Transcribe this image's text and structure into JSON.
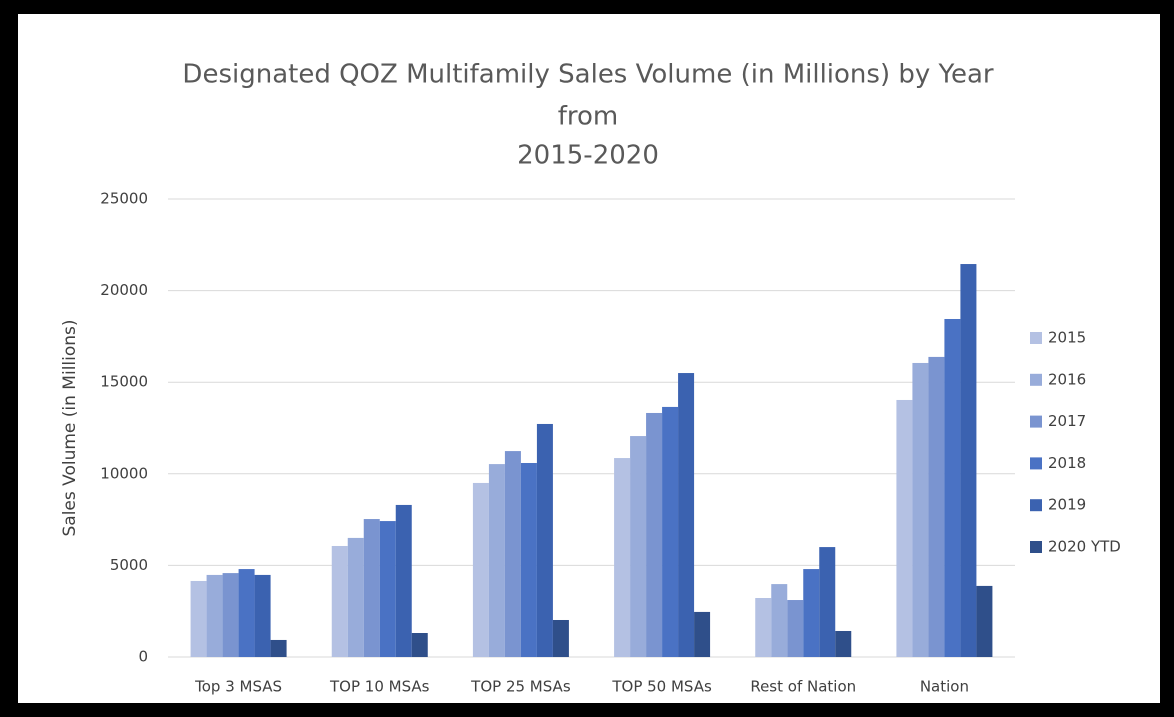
{
  "chart_data": {
    "type": "bar",
    "title": [
      "Designated QOZ Multifamily Sales Volume (in Millions) by Year",
      "from",
      "2015-2020"
    ],
    "y_label": "Sales Volume (in Millions)",
    "categories": [
      "Top 3 MSAS",
      "TOP 10 MSAs",
      "TOP 25 MSAs",
      "TOP 50 MSAs",
      "Rest of Nation",
      "Nation"
    ],
    "series": [
      {
        "name": "2015",
        "color": "#b4c1e3",
        "values": [
          4150,
          6060,
          9500,
          10860,
          3220,
          14030
        ]
      },
      {
        "name": "2016",
        "color": "#98acda",
        "values": [
          4480,
          6500,
          10530,
          12060,
          3980,
          16050
        ]
      },
      {
        "name": "2017",
        "color": "#7a94d0",
        "values": [
          4580,
          7530,
          11240,
          13320,
          3110,
          16380
        ]
      },
      {
        "name": "2018",
        "color": "#4a72c4",
        "values": [
          4800,
          7420,
          10590,
          13650,
          4800,
          18450
        ]
      },
      {
        "name": "2019",
        "color": "#3b62b0",
        "values": [
          4480,
          8300,
          12720,
          15500,
          6000,
          21450
        ]
      },
      {
        "name": "2020 YTD",
        "color": "#2f4f8a",
        "values": [
          930,
          1310,
          2020,
          2460,
          1420,
          3880
        ]
      }
    ],
    "ylim": [
      0,
      25000
    ],
    "yticks": [
      0,
      5000,
      10000,
      15000,
      20000,
      25000
    ],
    "grid": true,
    "legend": "right"
  }
}
